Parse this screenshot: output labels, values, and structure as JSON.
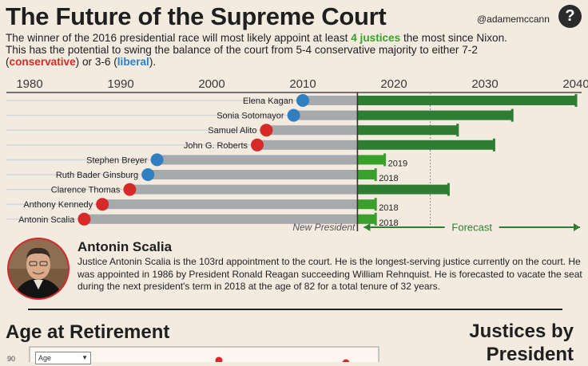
{
  "header": {
    "title": "The Future of the Supreme Court",
    "handle": "@adamemccann",
    "help_icon": "?"
  },
  "intro": {
    "line1_a": "The winner of the 2016 presidential race will most likely appoint at least ",
    "highlight_justices": "4 justices",
    "line1_b": " the most since Nixon.",
    "line2": "This has the potential to swing the balance of the court from 5-4 conservative majority to either 7-2",
    "paren_open": "(",
    "conservative": "conservative",
    "line3_mid": ") or 3-6 (",
    "liberal": "liberal",
    "line3_end": ")."
  },
  "colors": {
    "background": "#f3ebdf",
    "liberal": "#2f7fc1",
    "conservative": "#d62a2a",
    "served": "#a7aaad",
    "forecast_dark": "#2e7d32",
    "forecast_light": "#3aa02c"
  },
  "chart_data": {
    "type": "bar",
    "orientation": "horizontal",
    "x_ticks": [
      "1980",
      "1990",
      "2000",
      "2010",
      "2020",
      "2030",
      "2040"
    ],
    "xlim": [
      1976,
      2042
    ],
    "current_year": 2016,
    "marker_year": 2024,
    "new_president_label": "New President",
    "forecast_label": "Forecast",
    "justices": [
      {
        "name": "Elena Kagan",
        "party": "liberal",
        "appointed": 2010,
        "forecast_end": 2040,
        "end_label": ""
      },
      {
        "name": "Sonia Sotomayor",
        "party": "liberal",
        "appointed": 2009,
        "forecast_end": 2033,
        "end_label": ""
      },
      {
        "name": "Samuel Alito",
        "party": "conservative",
        "appointed": 2006,
        "forecast_end": 2027,
        "end_label": ""
      },
      {
        "name": "John G. Roberts",
        "party": "conservative",
        "appointed": 2005,
        "forecast_end": 2031,
        "end_label": ""
      },
      {
        "name": "Stephen Breyer",
        "party": "liberal",
        "appointed": 1994,
        "forecast_end": 2019,
        "end_label": "2019"
      },
      {
        "name": "Ruth Bader Ginsburg",
        "party": "liberal",
        "appointed": 1993,
        "forecast_end": 2018,
        "end_label": "2018"
      },
      {
        "name": "Clarence Thomas",
        "party": "conservative",
        "appointed": 1991,
        "forecast_end": 2026,
        "end_label": ""
      },
      {
        "name": "Anthony Kennedy",
        "party": "conservative",
        "appointed": 1988,
        "forecast_end": 2018,
        "end_label": "2018"
      },
      {
        "name": "Antonin Scalia",
        "party": "conservative",
        "appointed": 1986,
        "forecast_end": 2018,
        "end_label": "2018"
      }
    ]
  },
  "profile": {
    "name": "Antonin Scalia",
    "bio": "Justice Antonin Scalia is the 103rd appointment to the court. He is the longest-serving justice currently on the court. He was appointed in 1986 by President Ronald Reagan succeeding William Rehnquist. He is forecasted to vacate the seat during the next president's term in 2018 at the age of 82 for a total tenure of 32 years."
  },
  "age_section": {
    "title": "Age at Retirement",
    "select_value": "Age",
    "first_tick": "90"
  },
  "jbp_section": {
    "title_line1": "Justices by",
    "title_line2": "President"
  }
}
